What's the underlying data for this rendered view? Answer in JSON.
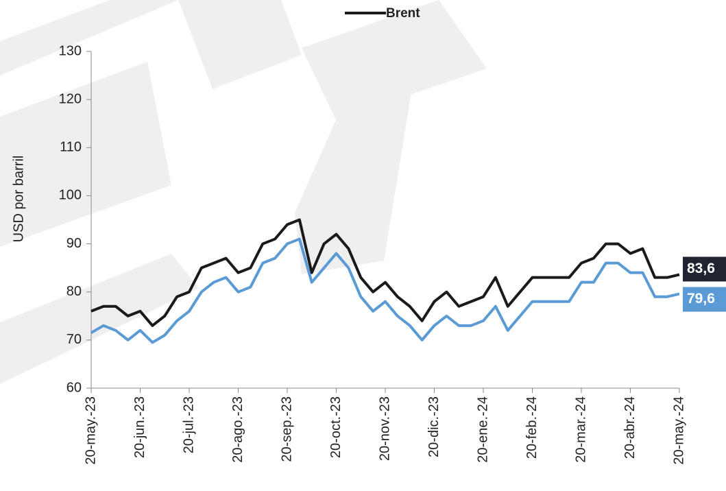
{
  "chart_data": {
    "type": "line",
    "categories": [
      "20-may.-23",
      null,
      null,
      null,
      "20-jun.-23",
      null,
      null,
      null,
      "20-jul.-23",
      null,
      null,
      null,
      "20-ago.-23",
      null,
      null,
      null,
      "20-sep.-23",
      null,
      null,
      null,
      "20-oct.-23",
      null,
      null,
      null,
      "20-nov.-23",
      null,
      null,
      null,
      "20-dic.-23",
      null,
      null,
      null,
      "20-ene.-24",
      null,
      null,
      null,
      "20-feb.-24",
      null,
      null,
      null,
      "20-mar.-24",
      null,
      null,
      null,
      "20-abr.-24",
      null,
      null,
      null,
      "20-may.-24"
    ],
    "series": [
      {
        "name": "Brent",
        "color": "#1a1a1a",
        "values": [
          76,
          77,
          77,
          75,
          76,
          73,
          75,
          79,
          80,
          85,
          86,
          87,
          84,
          85,
          90,
          91,
          94,
          95,
          84,
          90,
          92,
          89,
          83,
          80,
          82,
          79,
          77,
          74,
          78,
          80,
          77,
          78,
          79,
          83,
          77,
          80,
          83,
          83,
          83,
          83,
          86,
          87,
          90,
          90,
          88,
          89,
          83,
          83,
          83.6
        ],
        "value_labels": [
          null,
          null,
          null,
          null,
          null,
          null,
          null,
          null,
          null,
          null,
          null,
          null,
          null,
          null,
          null,
          null,
          null,
          null,
          null,
          null,
          null,
          null,
          null,
          null,
          null,
          null,
          null,
          null,
          null,
          null,
          null,
          null,
          null,
          null,
          null,
          null,
          null,
          null,
          null,
          null,
          null,
          null,
          null,
          null,
          null,
          null,
          null,
          null,
          "83,6"
        ]
      },
      {
        "color": "#5b9bd5",
        "values": [
          71.5,
          73,
          72,
          70,
          72,
          69.5,
          71,
          74,
          76,
          80,
          82,
          83,
          80,
          81,
          86,
          87,
          90,
          91,
          82,
          85,
          88,
          85,
          79,
          76,
          78,
          75,
          73,
          70,
          73,
          75,
          73,
          73,
          74,
          77,
          72,
          75,
          78,
          78,
          78,
          78,
          82,
          82,
          86,
          86,
          84,
          84,
          79,
          79,
          79.6
        ],
        "value_labels": [
          null,
          null,
          null,
          null,
          null,
          null,
          null,
          null,
          null,
          null,
          null,
          null,
          null,
          null,
          null,
          null,
          null,
          null,
          null,
          null,
          null,
          null,
          null,
          null,
          null,
          null,
          null,
          null,
          null,
          null,
          null,
          null,
          null,
          null,
          null,
          null,
          null,
          null,
          null,
          null,
          null,
          null,
          null,
          null,
          null,
          null,
          null,
          null,
          "79,6"
        ]
      }
    ],
    "y_label": "USD por barril",
    "ylim": [
      60,
      130
    ],
    "yticks": [
      60,
      70,
      80,
      90,
      100,
      110,
      120,
      130
    ],
    "legend": "top"
  }
}
